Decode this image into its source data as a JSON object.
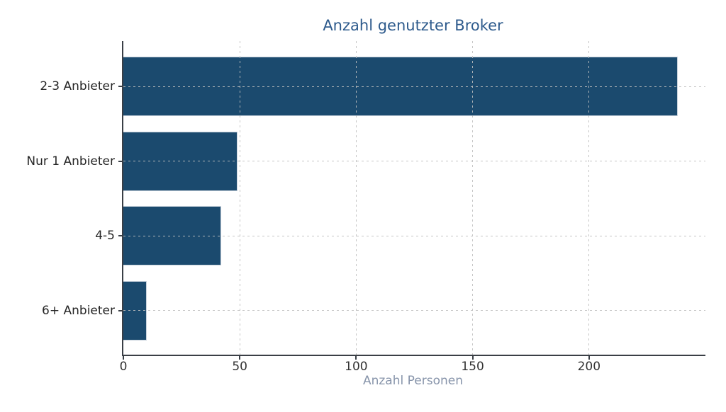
{
  "chart_data": {
    "type": "bar",
    "orientation": "horizontal",
    "title": "Anzahl genutzter Broker",
    "xlabel": "Anzahl Personen",
    "ylabel": "",
    "categories": [
      "2-3 Anbieter",
      "Nur 1 Anbieter",
      "4-5",
      "6+ Anbieter"
    ],
    "values": [
      238,
      49,
      42,
      10
    ],
    "xlim": [
      0,
      250
    ],
    "xticks": [
      0,
      50,
      100,
      150,
      200
    ],
    "grid": "dashed gridlines on both axes, drawn above bars",
    "legend_position": "none",
    "colors": {
      "bar_fill": "#1b4a6e",
      "bar_edge": "#c8d2dc",
      "title_text": "#2d5a8c",
      "xlabel_text": "#8794aa",
      "tick_label_text": "#333333",
      "axis_spine": "#3a3f46",
      "gridline": "#bfbfbf",
      "background": "#ffffff"
    }
  }
}
